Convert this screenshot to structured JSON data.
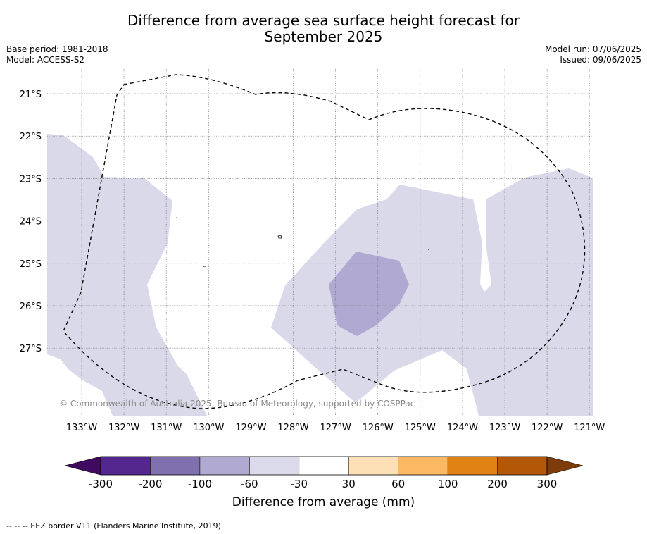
{
  "title_line1": "Difference from average sea surface height forecast for",
  "title_line2": "September 2025",
  "meta_left": {
    "base_period": "Base period: 1981-2018",
    "model": "Model: ACCESS-S2"
  },
  "meta_right": {
    "model_run": "Model run: 07/06/2025",
    "issued": "Issued: 09/06/2025"
  },
  "lat_labels": [
    "21°S",
    "22°S",
    "23°S",
    "24°S",
    "25°S",
    "26°S",
    "27°S"
  ],
  "lon_labels": [
    "133°W",
    "132°W",
    "131°W",
    "130°W",
    "129°W",
    "128°W",
    "127°W",
    "126°W",
    "125°W",
    "124°W",
    "123°W",
    "122°W",
    "121°W"
  ],
  "copyright": "© Commonwealth of Australia 2025, Bureau of Meteorology, supported by COSPPac",
  "colorbar": {
    "colors": [
      "#3f0a60",
      "#54278f",
      "#7f71ad",
      "#b0a9d2",
      "#dadaeb",
      "#ffffff",
      "#fee0b6",
      "#fdb863",
      "#e08214",
      "#b35806",
      "#7f3b08"
    ],
    "tick_labels": [
      "-300",
      "-200",
      "-100",
      "-60",
      "-30",
      "30",
      "60",
      "100",
      "200",
      "300"
    ],
    "label": "Difference from average (mm)"
  },
  "footer": "--  --  -- EEZ border V11 (Flanders Marine Institute, 2019)."
}
